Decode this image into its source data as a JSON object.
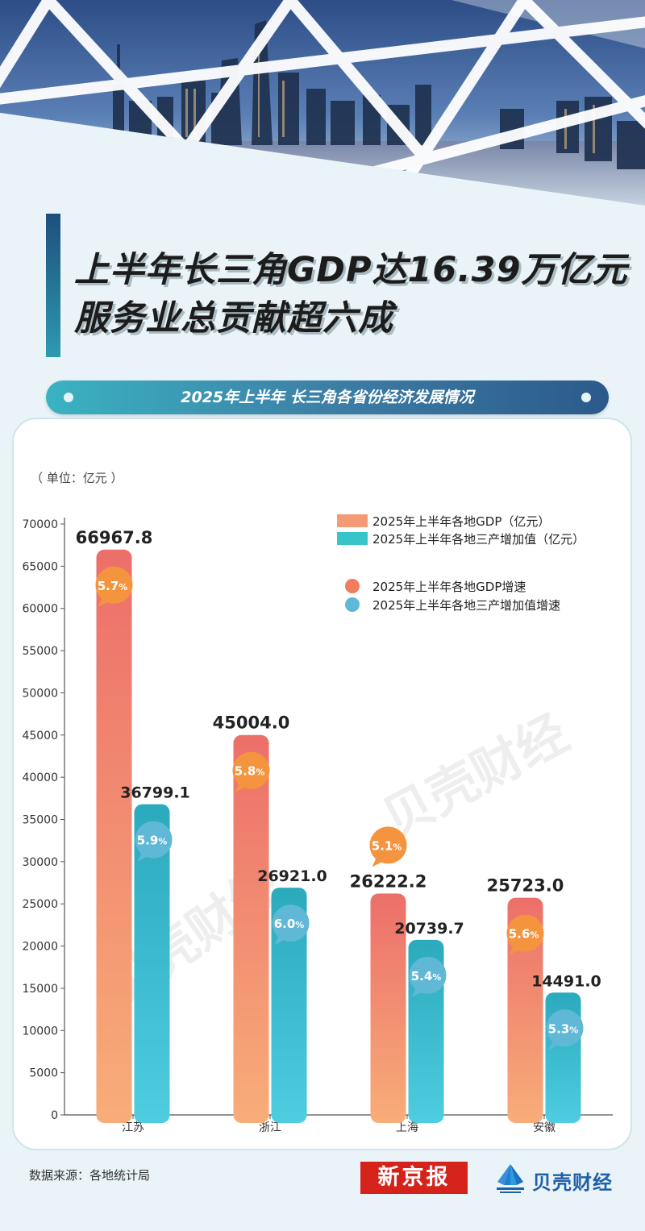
{
  "header": {
    "title_line1": "上半年长三角GDP达16.39万亿元",
    "title_line2": "服务业总贡献超六成",
    "subtitle": "2025年上半年 长三角各省份经济发展情况"
  },
  "chart_data": {
    "type": "bar",
    "unit_label": "（ 单位：亿元 ）",
    "categories": [
      "江苏",
      "浙江",
      "上海",
      "安徽"
    ],
    "ylim": [
      0,
      70000
    ],
    "yticks": [
      0,
      5000,
      10000,
      15000,
      20000,
      25000,
      30000,
      35000,
      40000,
      45000,
      50000,
      55000,
      60000,
      65000,
      70000
    ],
    "grid": false,
    "legend_position": "top-right",
    "series": [
      {
        "name": "2025年上半年各地GDP（亿元）",
        "values": [
          66967.8,
          45004.0,
          26222.2,
          25723.0
        ],
        "labels": [
          "66967.8",
          "45004.0",
          "26222.2",
          "25723.0"
        ]
      },
      {
        "name": "2025年上半年各地三产增加值（亿元）",
        "values": [
          36799.1,
          26921.0,
          20739.7,
          14491.0
        ],
        "labels": [
          "36799.1",
          "26921.0",
          "20739.7",
          "14491.0"
        ]
      }
    ],
    "growth_series": [
      {
        "name": "2025年上半年各地GDP增速",
        "values": [
          "5.7",
          "5.8",
          "5.1",
          "5.6"
        ]
      },
      {
        "name": "2025年上半年各地三产增加值增速",
        "values": [
          "5.9",
          "6.0",
          "5.4",
          "5.3"
        ]
      }
    ],
    "percent_sign": "%",
    "colors": {
      "gdp_top": "#ec6f6a",
      "gdp_bottom": "#f8ad79",
      "tertiary_top": "#2ba9bd",
      "tertiary_bottom": "#4ecde0",
      "gdp_bubble": "#f5943f",
      "tertiary_bubble": "#5fb8d6"
    }
  },
  "footer": {
    "source": "数据来源：各地统计局",
    "logo_xinjingbao": "新京报",
    "logo_beike": "贝壳财经"
  },
  "icons": [
    "skyline-image",
    "shell-logo-icon"
  ]
}
